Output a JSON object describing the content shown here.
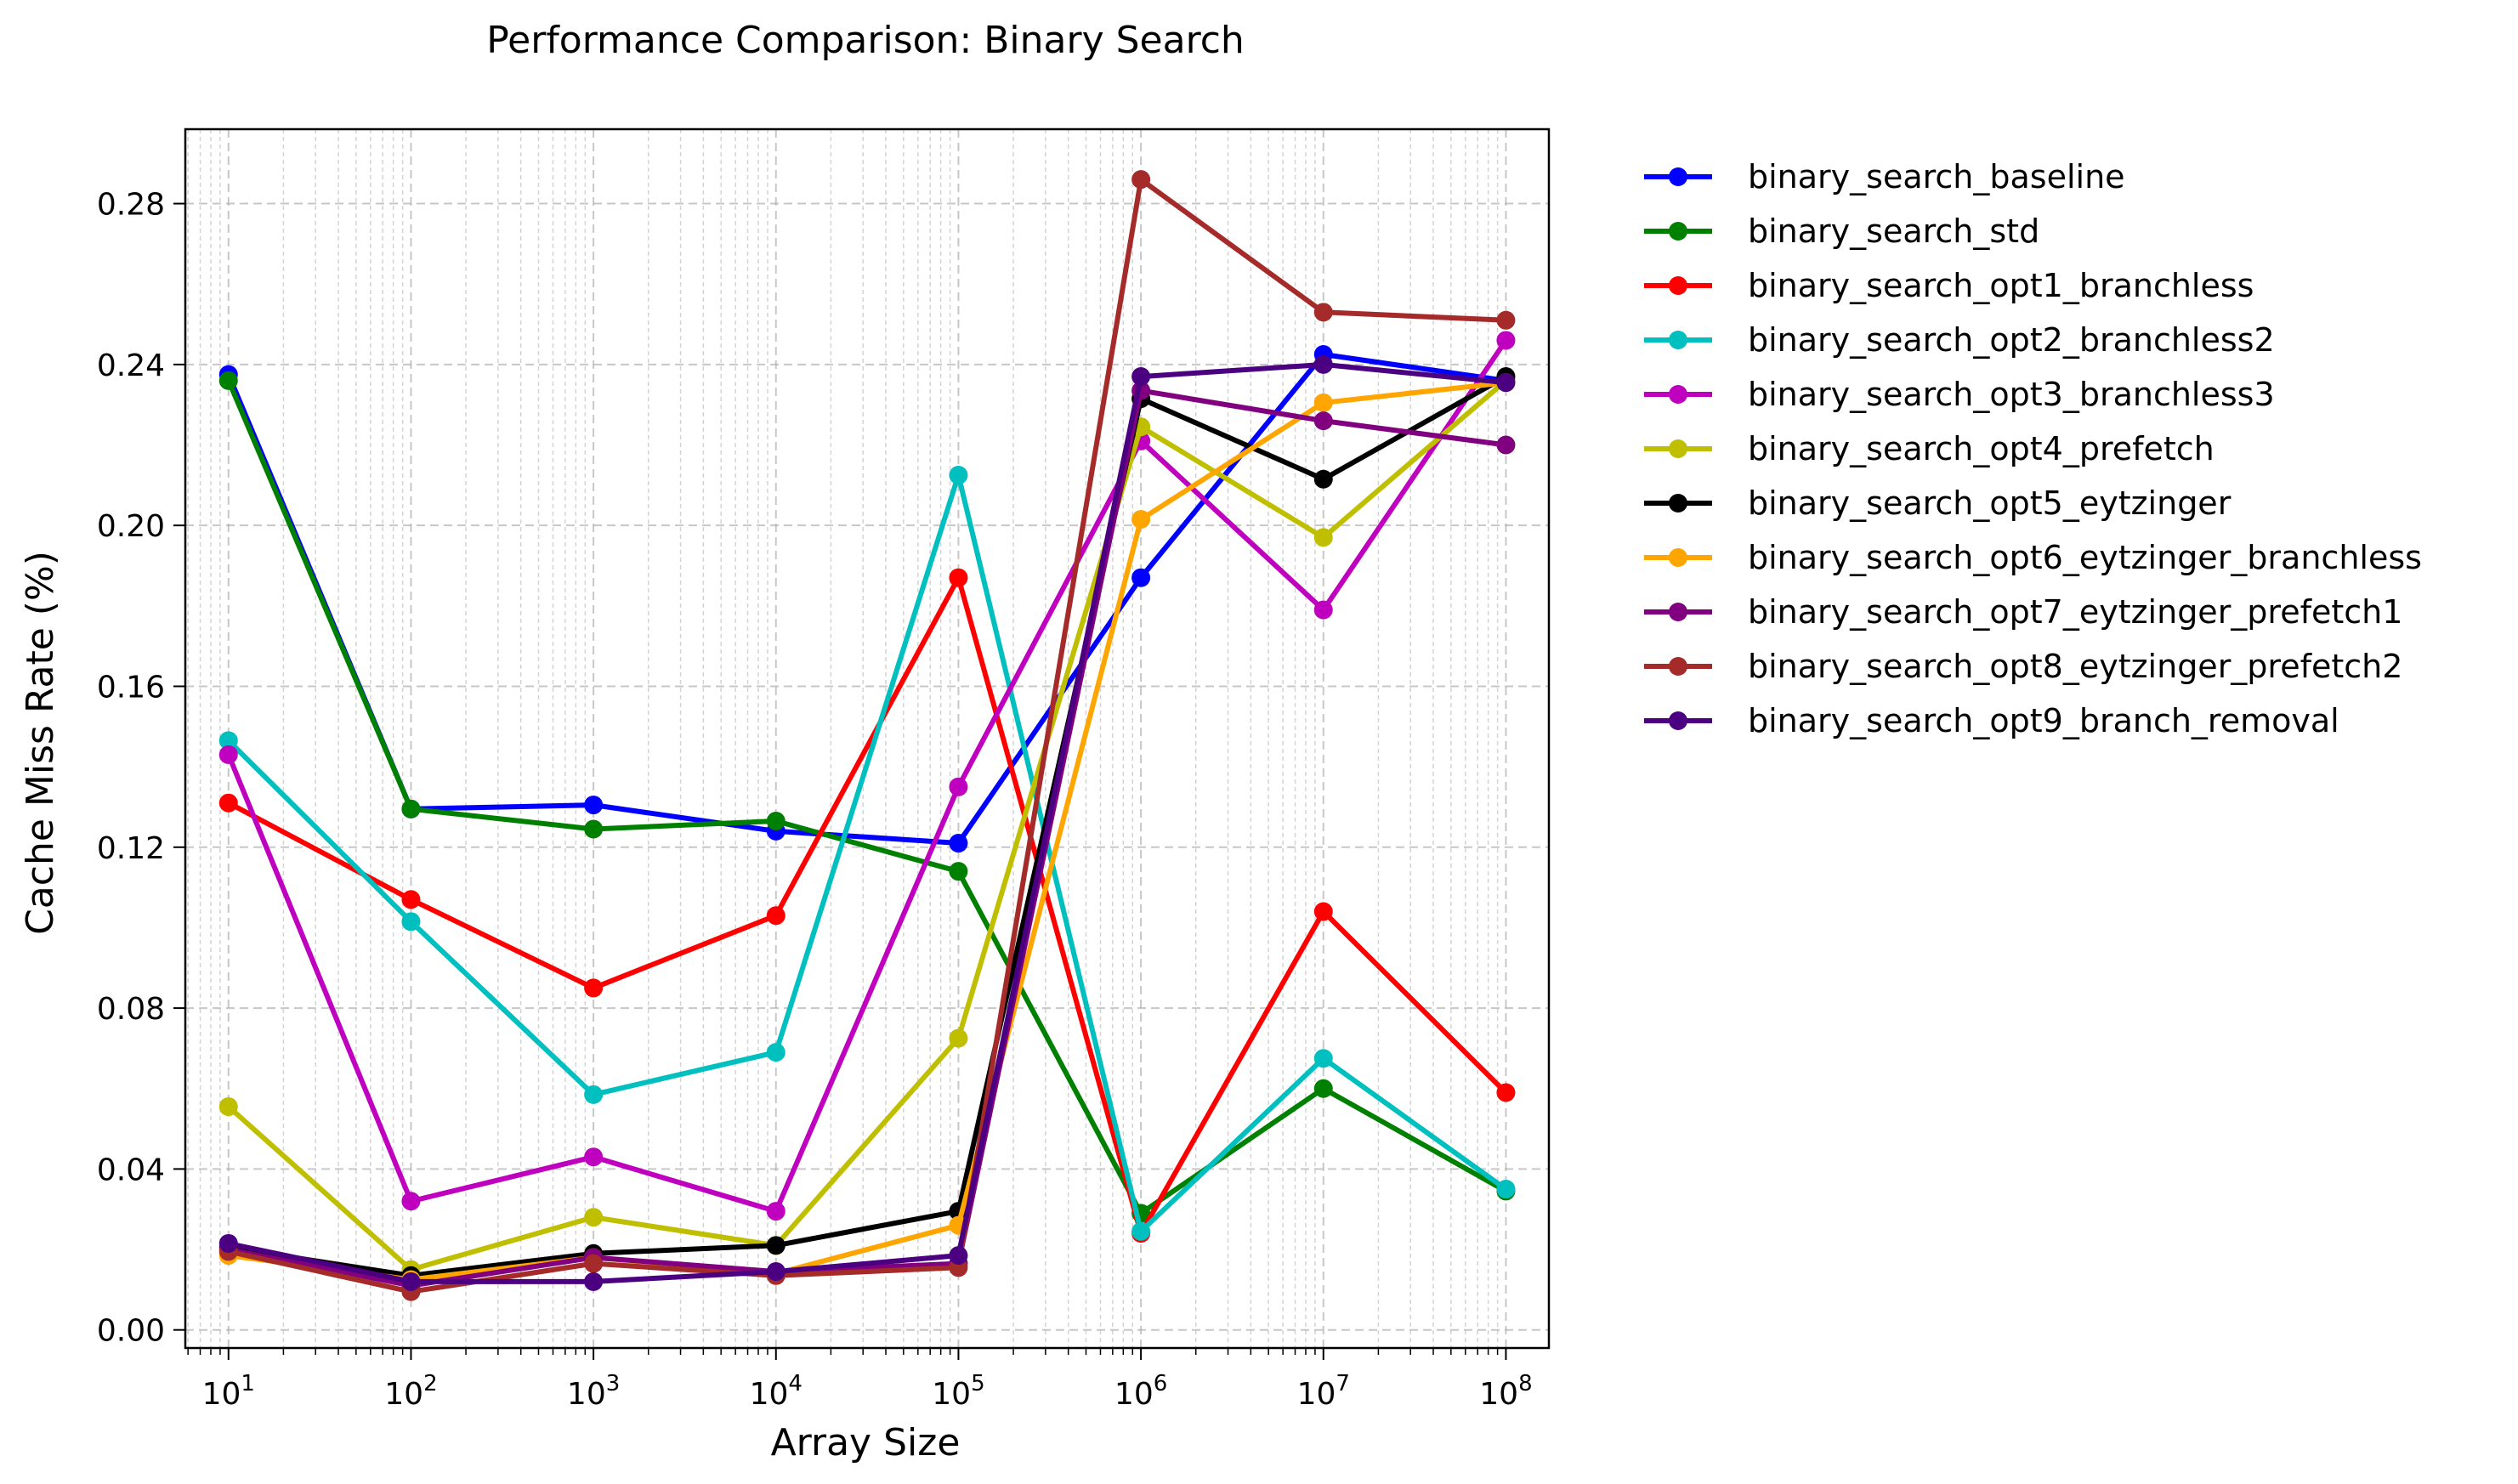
{
  "chart_data": {
    "type": "line",
    "title": "Performance Comparison: Binary Search",
    "xlabel": "Array Size",
    "ylabel": "Cache Miss Rate (%)",
    "x_scale": "log",
    "x": [
      10,
      100,
      1000,
      10000,
      100000,
      1000000,
      10000000,
      100000000
    ],
    "x_ticks": [
      {
        "base": "10",
        "exp": "1"
      },
      {
        "base": "10",
        "exp": "2"
      },
      {
        "base": "10",
        "exp": "3"
      },
      {
        "base": "10",
        "exp": "4"
      },
      {
        "base": "10",
        "exp": "5"
      },
      {
        "base": "10",
        "exp": "6"
      },
      {
        "base": "10",
        "exp": "7"
      },
      {
        "base": "10",
        "exp": "8"
      }
    ],
    "xlim": [
      5.8,
      172000000
    ],
    "ylim": [
      -0.0045,
      0.2985
    ],
    "y_ticks": [
      "0.00",
      "0.04",
      "0.08",
      "0.12",
      "0.16",
      "0.20",
      "0.24",
      "0.28"
    ],
    "grid": true,
    "legend_position": "outside-right",
    "series": [
      {
        "name": "binary_search_baseline",
        "color": "#0000ff",
        "values": [
          0.2375,
          0.1295,
          0.1305,
          0.124,
          0.121,
          0.187,
          0.2425,
          0.236
        ]
      },
      {
        "name": "binary_search_std",
        "color": "#008000",
        "values": [
          0.236,
          0.1295,
          0.1245,
          0.1265,
          0.114,
          0.029,
          0.06,
          0.0345
        ]
      },
      {
        "name": "binary_search_opt1_branchless",
        "color": "#ff0000",
        "values": [
          0.131,
          0.107,
          0.085,
          0.103,
          0.187,
          0.024,
          0.104,
          0.059
        ]
      },
      {
        "name": "binary_search_opt2_branchless2",
        "color": "#00bfbf",
        "values": [
          0.1465,
          0.1015,
          0.0585,
          0.069,
          0.2125,
          0.0245,
          0.0675,
          0.035
        ]
      },
      {
        "name": "binary_search_opt3_branchless3",
        "color": "#bf00bf",
        "values": [
          0.143,
          0.032,
          0.043,
          0.0295,
          0.135,
          0.221,
          0.179,
          0.246
        ]
      },
      {
        "name": "binary_search_opt4_prefetch",
        "color": "#bfbf00",
        "values": [
          0.0555,
          0.015,
          0.028,
          0.021,
          0.0725,
          0.2245,
          0.197,
          0.236
        ]
      },
      {
        "name": "binary_search_opt5_eytzinger",
        "color": "#000000",
        "values": [
          0.0205,
          0.0135,
          0.019,
          0.021,
          0.0295,
          0.2315,
          0.2115,
          0.237
        ]
      },
      {
        "name": "binary_search_opt6_eytzinger_branchless",
        "color": "#ffa500",
        "values": [
          0.0185,
          0.0125,
          0.018,
          0.014,
          0.026,
          0.2015,
          0.2305,
          0.2355
        ]
      },
      {
        "name": "binary_search_opt7_eytzinger_prefetch1",
        "color": "#800080",
        "values": [
          0.02,
          0.011,
          0.018,
          0.0145,
          0.0165,
          0.2335,
          0.226,
          0.22
        ]
      },
      {
        "name": "binary_search_opt8_eytzinger_prefetch2",
        "color": "#a52a2a",
        "values": [
          0.0195,
          0.0095,
          0.0165,
          0.0135,
          0.0155,
          0.286,
          0.253,
          0.251
        ]
      },
      {
        "name": "binary_search_opt9_branch_removal",
        "color": "#4b0082",
        "values": [
          0.0215,
          0.012,
          0.012,
          0.0145,
          0.0185,
          0.237,
          0.24,
          0.2355
        ]
      }
    ]
  }
}
